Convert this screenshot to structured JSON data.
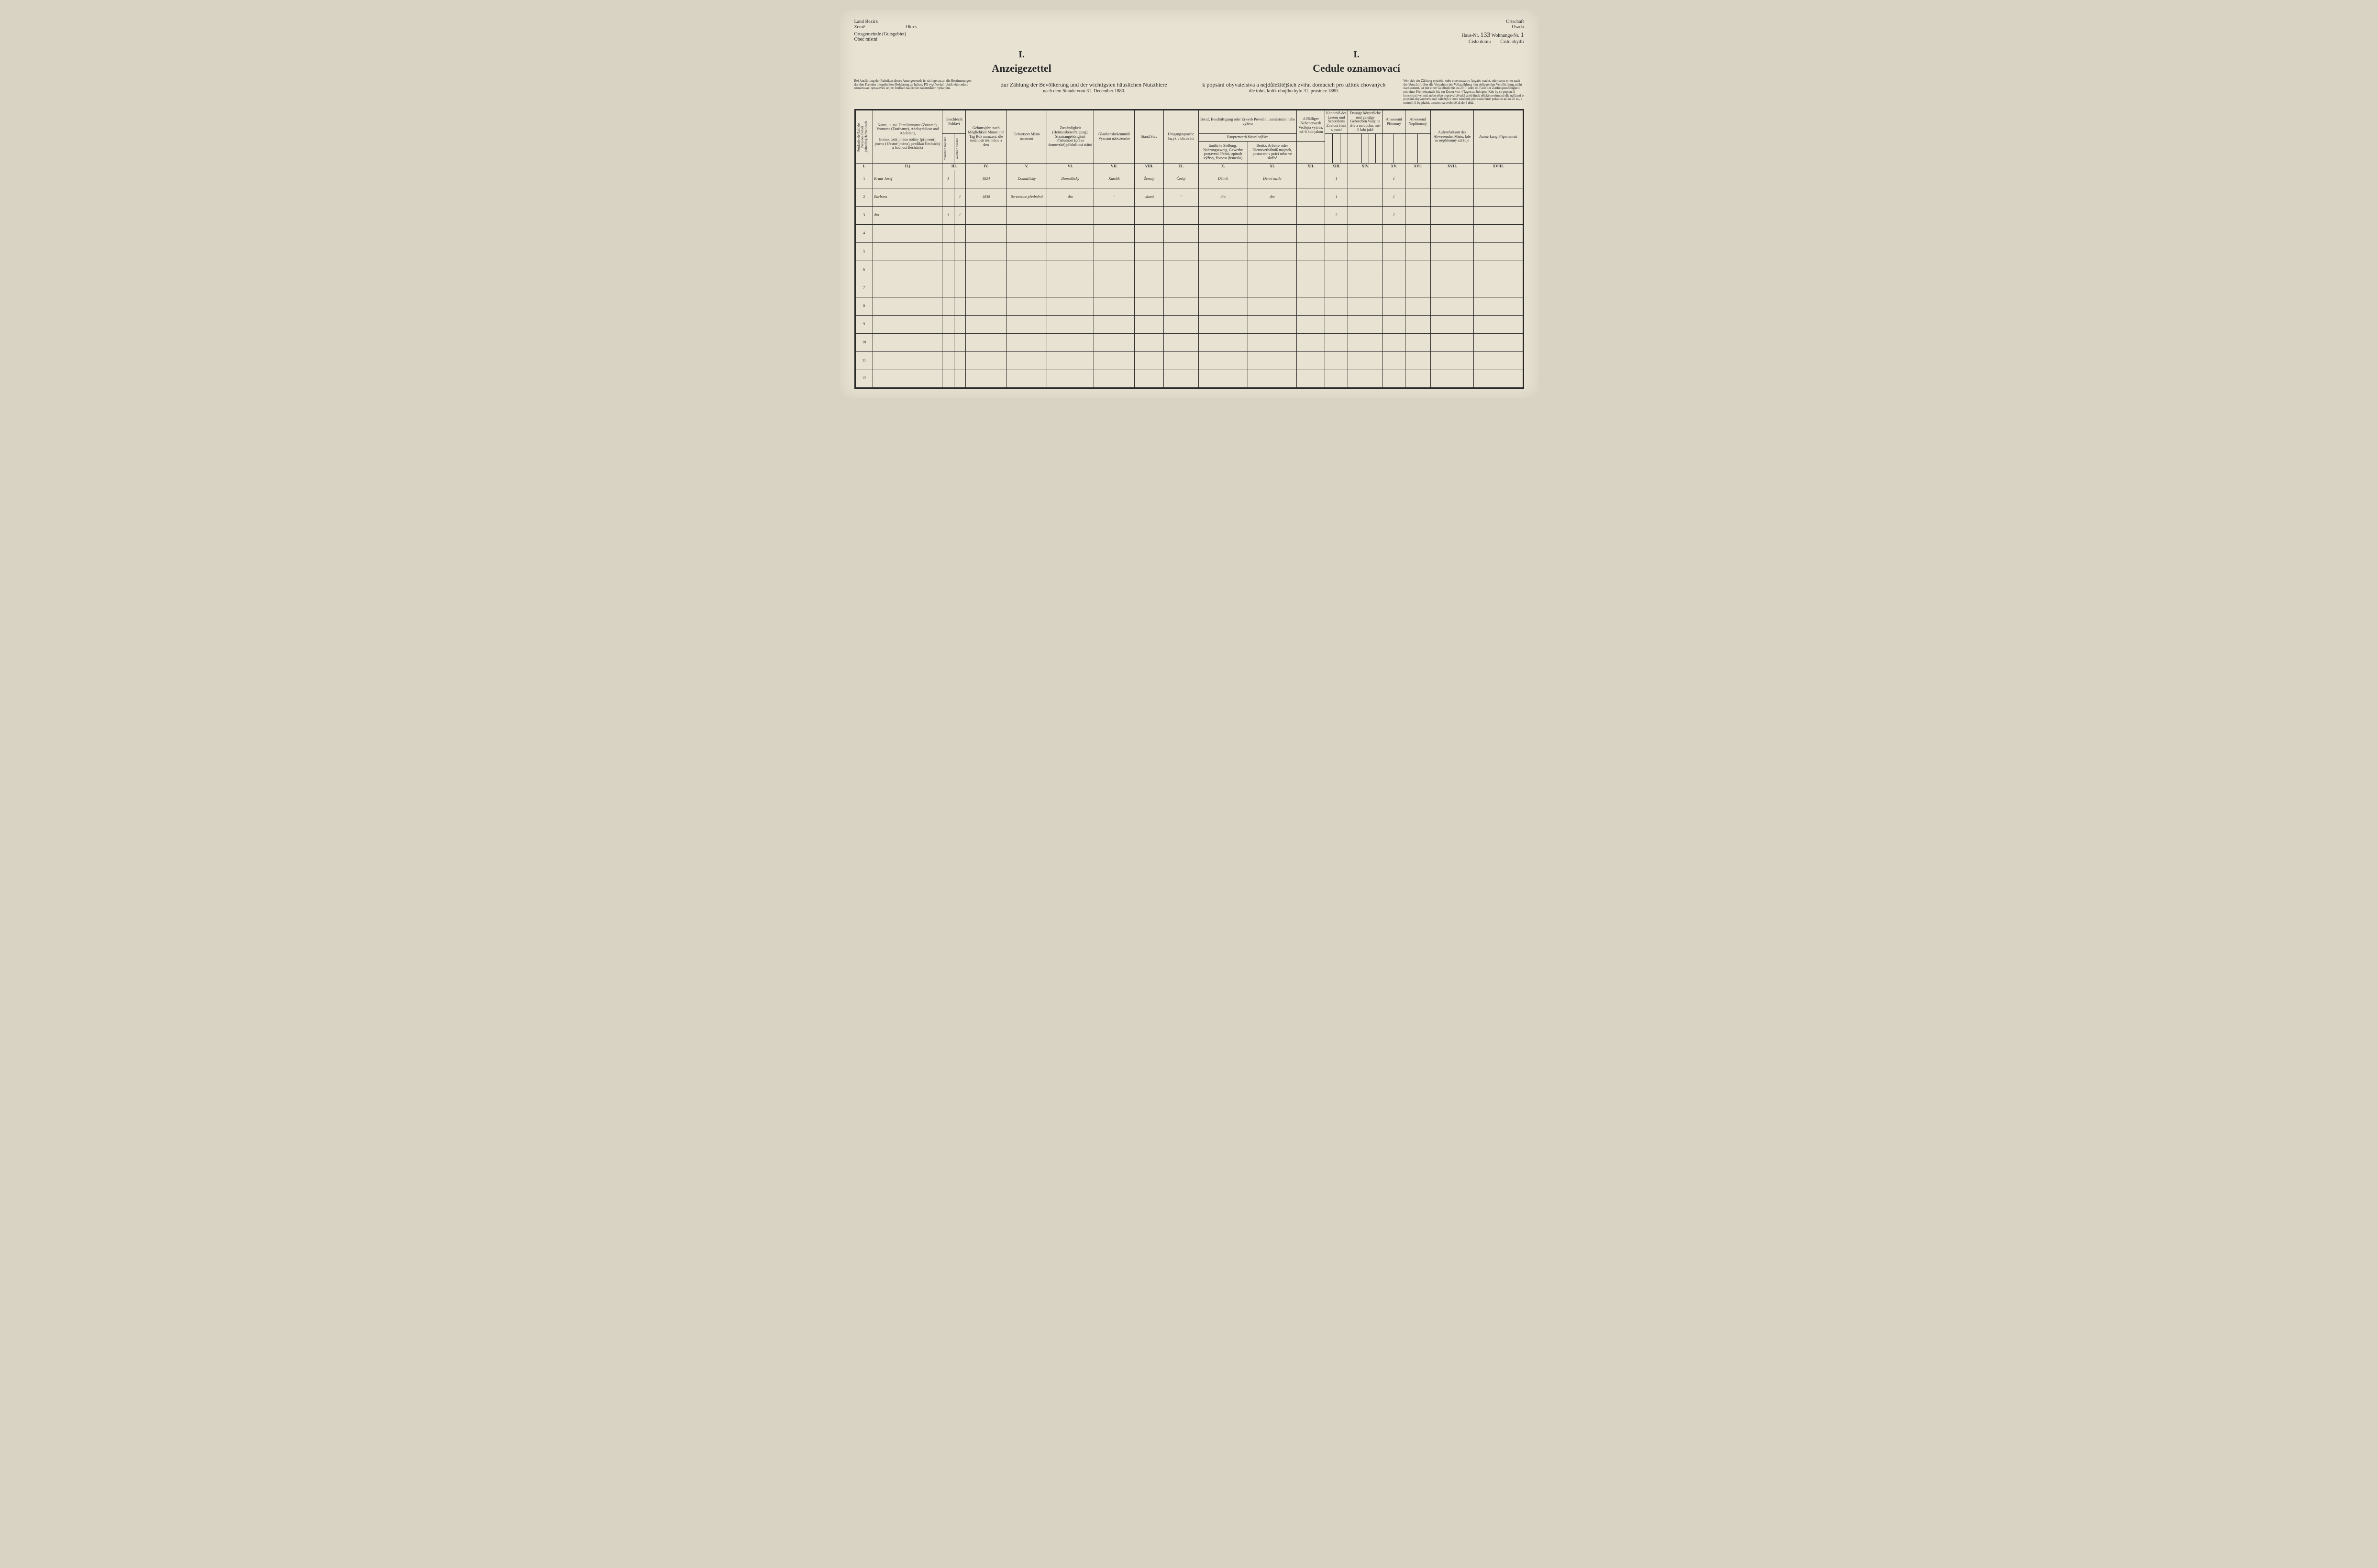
{
  "header": {
    "land": "Land",
    "zeme": "Země",
    "bezirk": "Bezirk",
    "okres": "Okres",
    "ortsgemeinde": "Ortsgemeinde (Gutsgebiet)",
    "obec": "Obec místní",
    "ortschaft": "Ortschaft",
    "osada": "Osada",
    "haus_nr_label": "Haus-Nr.",
    "haus_nr": "133",
    "wohnung_label": "Wohnungs-Nr.",
    "wohnung_nr": "1",
    "cislo_domu": "Číslo domu",
    "cislo_obydli": "Číslo obydlí"
  },
  "titles": {
    "roman": "I.",
    "german": "Anzeigezettel",
    "czech": "Cedule oznamovací",
    "sub_german": "zur Zählung der Bevölkerung und der wichtigsten häuslichen Nutzthiere",
    "sub_german2": "nach dem Stande vom 31. December 1880.",
    "sub_czech": "k popsání obyvatelstva a nejdůležitějších zvířat domácích pro užitek chovaných",
    "sub_czech2": "dle toho, kolik obojího bylo 31. prosince 1880."
  },
  "fineprint": {
    "left": "Bei Ausfüllung der Rubriken dieses Anzeigezettels ist sich genau an die Bestimmungen der den Parteien mitgetheilten Belehrung zu halten. Při vyplňování rubrik této cedule oznamovací spravovati se jest bedlivě naučením nájemníkům vydaným.",
    "right": "Wer sich der Zählung entzieht, oder eine unwahre Angabe macht, oder sonst einer nach der Vorschrift über die Vornahme der Volkszählung ihm obliegenden Verpflichtung nicht nachkommt, ist mit einer Geldbuße bis zu 20 fl. oder im Falle der Zahlungsunfähigkeit mit einer Freiheitsstrafe bis zur Dauer von 4 Tagen zu belegen. Kdo by se popisu či konskripci vyhnul, nebo něco nepravdivě udal aneb jinak nějaké povinnosti dle nařízení o popsání obyvatelstva naň náležející dosti neučinil, potrestán bude pokutou až do 20 zl., a nemohl-li by platiti, trestem na svobodě až do 4 dnů."
  },
  "columns": {
    "I": "I.",
    "II": "II.)",
    "III": "III.",
    "IV": "IV.",
    "V": "V.",
    "VI": "VI.",
    "VII": "VII.",
    "VIII": "VIII.",
    "IX": "IX.",
    "X": "X.",
    "XI": "XI.",
    "XII": "XII.",
    "XIII": "XIII.",
    "XIV": "XIV.",
    "XV": "XV.",
    "XVI": "XVI.",
    "XVII": "XVII.",
    "XVIII": "XVIII."
  },
  "headers": {
    "h1": "Fortlaufende Zahl der Personen\nPořadí jednotlivých čísel osob",
    "h2_de": "Name,\nu. zw. Familienname (Zuname), Vorname (Taufname), Adelsprädicat und Adelsrang",
    "h2_cz": "Jméno,\ntotiž jméno rodiny (příjmení), jméno (křestné jméno), predikát šlechtický a hodnost šlechtická",
    "h3": "Geschlecht\nPohlaví",
    "h3a": "männlich\nmužské",
    "h3b": "weiblich\nženské",
    "h4": "Geburtsjahr, nach Möglichkeit Monat und Tag\nRok narození, dle možnosti též měsíc a den",
    "h5": "Geburtsort\nMísto narození",
    "h6": "Zuständigkeit (Heimatsberechtigung), Staatsangehörigkeit\nPříslušnost (právo domovské) příslušnost státní",
    "h7": "Glaubensbekenntniß\nVyznání náboženské",
    "h8": "Stand\nStav",
    "h9": "Umgangssprache\nJazyk v obcování",
    "h10_top": "Beruf, Beschäftigung oder Erwerb\nPovolání, zaměstnání nebo výživa",
    "h10a": "Haupterwerb\nhlavní výživa",
    "h10": "ämtliche Stellung, Nahrungszweig, Gewerbe\npostavení úřední, způsob výživy, živnost (řemeslo)",
    "h11": "Besitz, Arbeits- oder Dienstverhältniß\nmajetek, postavení v práci nebo ve službě",
    "h12_top": "Allfälliger Nebenerwerb\nVedlejší výživa, má-li kdo jakou",
    "h13_top": "Kenntniß des Lesens und Schreibens\nZnalost čtení a psaní",
    "h14_top": "Etwaige körperliche und geistige Gebrechen\nVady na těle a na duchu, má-li kdo jaké",
    "h15": "Anwesend\nPřítomný",
    "h16": "Abwesend\nNepřítomný",
    "h17": "Aufenthaltsort des Abwesenden\nMísto, kde se nepřítomný zdržuje",
    "h18": "Anmerkung\nPřipomenutí"
  },
  "rows": [
    {
      "n": "1",
      "name": "Kraus Josef",
      "m": "1",
      "f": "",
      "year": "1824",
      "birthplace": "Domažlicky",
      "citiz": "Domažlický",
      "relig": "Katolík",
      "status": "Ženatý",
      "lang": "Český",
      "occ": "Dělník",
      "prop": "Denní mzda",
      "c12": "",
      "c13": "1",
      "c14": "",
      "c15": "1",
      "c16": "",
      "c17": "",
      "c18": ""
    },
    {
      "n": "2",
      "name": "Barbora",
      "m": "",
      "f": "1",
      "year": "1830",
      "birthplace": "Bernartice předměstí",
      "citiz": "dto",
      "relig": "\"",
      "status": "vdaná",
      "lang": "\"",
      "occ": "dto",
      "prop": "dto",
      "c12": "",
      "c13": "1",
      "c14": "",
      "c15": "1",
      "c16": "",
      "c17": "",
      "c18": ""
    },
    {
      "n": "3",
      "name": "dto",
      "m": "1",
      "f": "1",
      "year": "",
      "birthplace": "",
      "citiz": "",
      "relig": "",
      "status": "",
      "lang": "",
      "occ": "",
      "prop": "",
      "c12": "",
      "c13": "2",
      "c14": "",
      "c15": "2",
      "c16": "",
      "c17": "",
      "c18": ""
    },
    {
      "n": "4"
    },
    {
      "n": "5"
    },
    {
      "n": "6"
    },
    {
      "n": "7"
    },
    {
      "n": "8"
    },
    {
      "n": "9"
    },
    {
      "n": "10"
    },
    {
      "n": "11"
    },
    {
      "n": "12"
    }
  ]
}
